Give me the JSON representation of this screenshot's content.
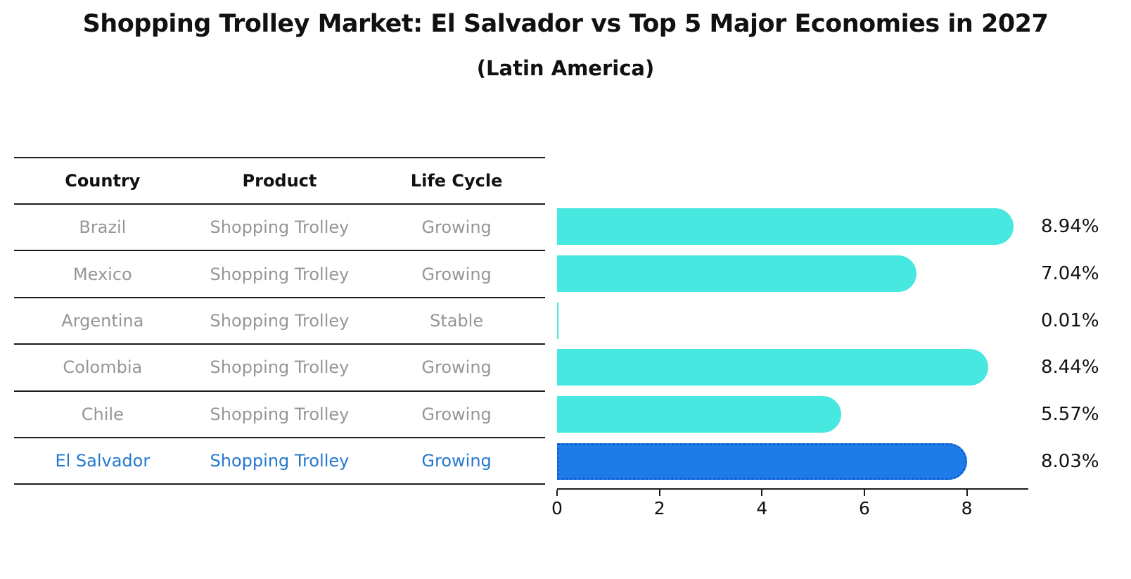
{
  "title": "Shopping Trolley Market: El Salvador vs Top 5 Major Economies in 2027",
  "subtitle": "(Latin America)",
  "table": {
    "headers": [
      "Country",
      "Product",
      "Life Cycle"
    ],
    "rows": [
      {
        "country": "Brazil",
        "product": "Shopping Trolley",
        "life_cycle": "Growing",
        "highlight": false
      },
      {
        "country": "Mexico",
        "product": "Shopping Trolley",
        "life_cycle": "Growing",
        "highlight": false
      },
      {
        "country": "Argentina",
        "product": "Shopping Trolley",
        "life_cycle": "Stable",
        "highlight": false
      },
      {
        "country": "Colombia",
        "product": "Shopping Trolley",
        "life_cycle": "Growing",
        "highlight": false
      },
      {
        "country": "Chile",
        "product": "Shopping Trolley",
        "life_cycle": "Growing",
        "highlight": false
      },
      {
        "country": "El Salvador",
        "product": "Shopping Trolley",
        "life_cycle": "Growing",
        "highlight": true
      }
    ]
  },
  "chart_data": {
    "type": "bar",
    "orientation": "horizontal",
    "title": "Shopping Trolley Market: El Salvador vs Top 5 Major Economies in 2027 (Latin America)",
    "categories": [
      "Brazil",
      "Mexico",
      "Argentina",
      "Colombia",
      "Chile",
      "El Salvador"
    ],
    "values": [
      8.94,
      7.04,
      0.01,
      8.44,
      5.57,
      8.03
    ],
    "labels": [
      "8.94%",
      "7.04%",
      "0.01%",
      "8.44%",
      "5.57%",
      "8.03%"
    ],
    "x_ticks": [
      0,
      2,
      4,
      6,
      8
    ],
    "xlim": [
      0,
      9.2
    ],
    "grid": false,
    "legend": "none",
    "highlight_index": 5
  },
  "colors": {
    "bar-cyan": "#46e8e0",
    "bar-blue": "#1e7ce8",
    "bar-blue-border": "#0f5fd0",
    "accent-text": "#2478d0",
    "grey-text": "#969696",
    "line": "#1c1c1c"
  }
}
